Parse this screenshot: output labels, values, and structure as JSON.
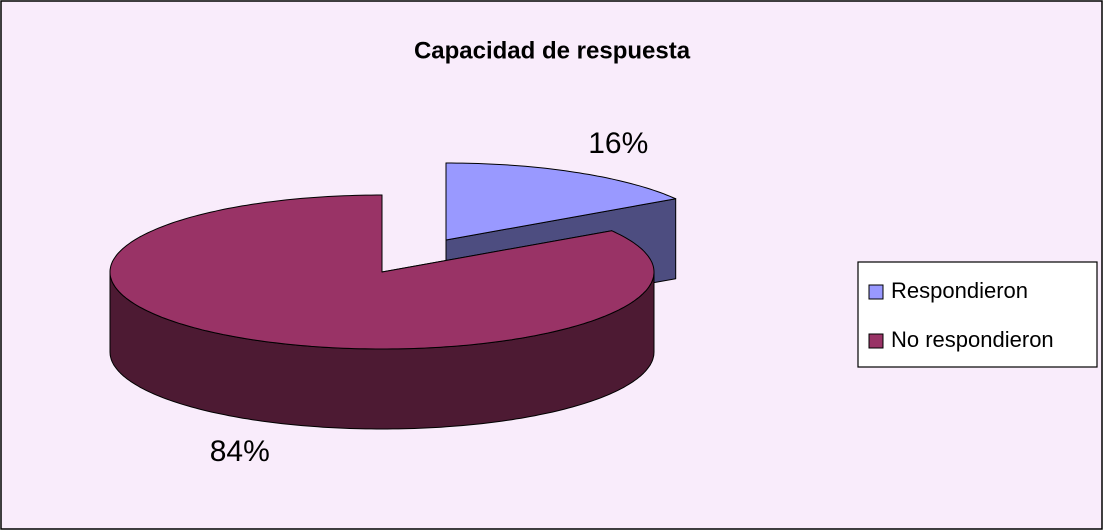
{
  "chart_data": {
    "type": "pie",
    "title": "Capacidad de respuesta",
    "categories": [
      "Respondieron",
      "No respondieron"
    ],
    "values": [
      16,
      84
    ],
    "value_labels": [
      "16%",
      "84%"
    ],
    "colors": [
      "#9999ff",
      "#993366"
    ],
    "legend": "right"
  }
}
